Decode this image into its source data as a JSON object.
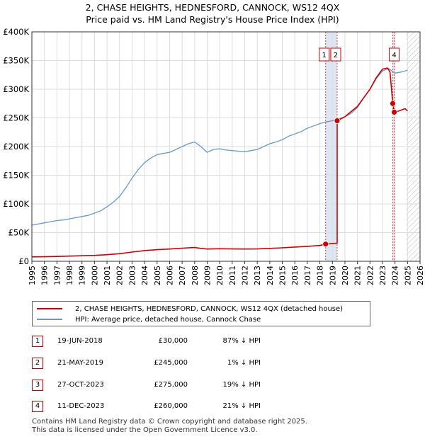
{
  "title_line1": "2, CHASE HEIGHTS, HEDNESFORD, CANNOCK, WS12 4QX",
  "title_line2": "Price paid vs. HM Land Registry's House Price Index (HPI)",
  "colors": {
    "property": "#cc0000",
    "hpi": "#6699cc",
    "marker": "#cc0000",
    "shade": "#dde6f2"
  },
  "chart_data": {
    "type": "line",
    "title": "Price paid vs. HM Land Registry's House Price Index (HPI)",
    "xlim": [
      1995,
      2026
    ],
    "ylim": [
      0,
      400000
    ],
    "x_ticks": [
      "1995",
      "1996",
      "1997",
      "1998",
      "1999",
      "2000",
      "2001",
      "2002",
      "2003",
      "2004",
      "2005",
      "2006",
      "2007",
      "2008",
      "2009",
      "2010",
      "2011",
      "2012",
      "2013",
      "2014",
      "2015",
      "2016",
      "2017",
      "2018",
      "2019",
      "2020",
      "2021",
      "2022",
      "2023",
      "2024",
      "2025",
      "2026"
    ],
    "y_ticks": [
      {
        "value": 0,
        "label": "£0"
      },
      {
        "value": 50000,
        "label": "£50K"
      },
      {
        "value": 100000,
        "label": "£100K"
      },
      {
        "value": 150000,
        "label": "£150K"
      },
      {
        "value": 200000,
        "label": "£200K"
      },
      {
        "value": 250000,
        "label": "£250K"
      },
      {
        "value": 300000,
        "label": "£300K"
      },
      {
        "value": 350000,
        "label": "£350K"
      },
      {
        "value": 400000,
        "label": "£400K"
      }
    ],
    "hatch_from": 2024.9,
    "series": [
      {
        "name": "HPI: Average price, detached house, Cannock Chase",
        "x": [
          1995.0,
          1995.5,
          1996.0,
          1996.5,
          1997.0,
          1997.5,
          1998.0,
          1998.5,
          1999.0,
          1999.5,
          2000.0,
          2000.5,
          2001.0,
          2001.5,
          2002.0,
          2002.5,
          2003.0,
          2003.5,
          2004.0,
          2004.5,
          2005.0,
          2005.5,
          2006.0,
          2006.5,
          2007.0,
          2007.5,
          2008.0,
          2008.5,
          2009.0,
          2009.5,
          2010.0,
          2010.5,
          2011.0,
          2011.5,
          2012.0,
          2012.5,
          2013.0,
          2013.5,
          2014.0,
          2014.5,
          2015.0,
          2015.5,
          2016.0,
          2016.5,
          2017.0,
          2017.5,
          2018.0,
          2018.5,
          2019.0,
          2019.5,
          2020.0,
          2020.5,
          2021.0,
          2021.5,
          2022.0,
          2022.5,
          2023.0,
          2023.5,
          2024.0,
          2024.5,
          2025.0
        ],
        "values": [
          63000,
          65000,
          67000,
          69000,
          71000,
          72000,
          74000,
          76000,
          78000,
          80000,
          84000,
          88000,
          95000,
          103000,
          113000,
          128000,
          145000,
          160000,
          172000,
          180000,
          186000,
          188000,
          190000,
          195000,
          200000,
          205000,
          208000,
          200000,
          190000,
          195000,
          196000,
          194000,
          193000,
          192000,
          191000,
          193000,
          195000,
          200000,
          205000,
          208000,
          212000,
          218000,
          222000,
          226000,
          232000,
          236000,
          240000,
          243000,
          245000,
          248000,
          252000,
          258000,
          268000,
          285000,
          300000,
          318000,
          332000,
          336000,
          328000,
          330000,
          333000
        ]
      },
      {
        "name": "2, CHASE HEIGHTS, HEDNESFORD, CANNOCK, WS12 4QX (detached house)",
        "x": [
          1995.0,
          1996.0,
          1997.0,
          1998.0,
          1999.0,
          2000.0,
          2001.0,
          2002.0,
          2003.0,
          2004.0,
          2005.0,
          2006.0,
          2007.0,
          2008.0,
          2008.5,
          2009.0,
          2010.0,
          2011.0,
          2012.0,
          2013.0,
          2014.0,
          2015.0,
          2016.0,
          2017.0,
          2018.0,
          2018.46,
          2019.0,
          2019.38,
          2019.38,
          2020.0,
          2021.0,
          2022.0,
          2022.5,
          2023.0,
          2023.4,
          2023.6,
          2023.82,
          2023.94,
          2024.3,
          2024.8,
          2025.0
        ],
        "values": [
          7600,
          7900,
          8400,
          9000,
          9600,
          10300,
          11500,
          13200,
          16000,
          18600,
          20300,
          21400,
          22800,
          24000,
          22500,
          21300,
          21800,
          21500,
          21300,
          21500,
          22500,
          23500,
          24800,
          26000,
          27500,
          30000,
          31000,
          31500,
          245000,
          252000,
          270000,
          300000,
          320000,
          335000,
          337000,
          330000,
          275000,
          260000,
          262000,
          266000,
          262000
        ]
      }
    ],
    "transactions": [
      {
        "n": "1",
        "date": "19-JUN-2018",
        "x": 2018.46,
        "price": 30000,
        "price_label": "£30,000",
        "hpi": "87% ↓ HPI"
      },
      {
        "n": "2",
        "date": "21-MAY-2019",
        "x": 2019.38,
        "price": 245000,
        "price_label": "£245,000",
        "hpi": "1% ↓ HPI"
      },
      {
        "n": "3",
        "date": "27-OCT-2023",
        "x": 2023.82,
        "price": 275000,
        "price_label": "£275,000",
        "hpi": "19% ↓ HPI"
      },
      {
        "n": "4",
        "date": "11-DEC-2023",
        "x": 2023.94,
        "price": 260000,
        "price_label": "£260,000",
        "hpi": "21% ↓ HPI"
      }
    ]
  },
  "legend": {
    "property": "2, CHASE HEIGHTS, HEDNESFORD, CANNOCK, WS12 4QX (detached house)",
    "hpi": "HPI: Average price, detached house, Cannock Chase"
  },
  "footer": {
    "line1": "Contains HM Land Registry data © Crown copyright and database right 2025.",
    "line2": "This data is licensed under the Open Government Licence v3.0."
  }
}
